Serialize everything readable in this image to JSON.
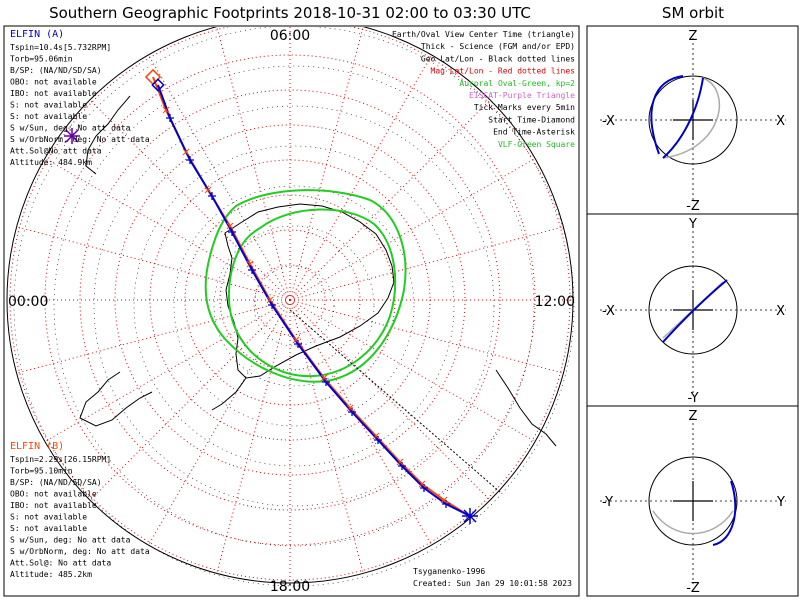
{
  "title": "Southern Geographic Footprints 2018-10-31 02:00 to 03:30 UTC",
  "orbit_title": "SM orbit",
  "main": {
    "time_labels": {
      "top": "06:00",
      "left": "00:00",
      "right": "12:00",
      "bottom": "18:00"
    },
    "legend": [
      {
        "text": "Earth/Oval View Center Time (triangle)",
        "color": "#000000"
      },
      {
        "text": "Thick - Science (FGM and/or EPD)",
        "color": "#000000"
      },
      {
        "text": "Geo Lat/Lon - Black dotted lines",
        "color": "#000000"
      },
      {
        "text": "Mag Lat/Lon - Red dotted lines",
        "color": "#dd0000"
      },
      {
        "text": "Auroral Oval-Green, kp=2",
        "color": "#22bb22"
      },
      {
        "text": "EISCAT-Purple Triangle",
        "color": "#cc66cc"
      },
      {
        "text": "Tick Marks every 5min",
        "color": "#000000"
      },
      {
        "text": "Start Time-Diamond",
        "color": "#000000"
      },
      {
        "text": "End Time-Asterisk",
        "color": "#000000"
      },
      {
        "text": "VLF-Green Square",
        "color": "#22bb22"
      }
    ],
    "elfin_a": {
      "name": "ELFIN (A)",
      "color": "#0000cc",
      "lines": [
        "Tspin=10.4s[5.732RPM]",
        "Torb=95.06min",
        "B/SP: (NA/ND/SD/SA)",
        "OBO: not available",
        "IBO: not available",
        "S: not available",
        "S: not available",
        "S w/Sun, deg: No att data",
        "S w/OrbNorm, deg: No att data",
        "Att.Sol@No att data",
        "Altitude: 484.9km"
      ]
    },
    "elfin_b": {
      "name": "ELFIN (B)",
      "color": "#ff4400",
      "lines": [
        "Tspin=2.29s[26.15RPM]",
        "Torb=95.10min",
        "B/SP: (NA/ND/SD/SA)",
        "OBO: not available",
        "IBO: not available",
        "S: not available",
        "S: not available",
        "S w/Sun, deg: No att data",
        "S w/OrbNorm, deg: No att data",
        "Att.Sol@: No att data",
        "Altitude: 485.2km"
      ]
    },
    "credit": "Tsyganenko-1996",
    "created": "Created: Sun Jan 29 10:01:58 2023"
  },
  "orbit_panels": [
    {
      "top": "Z",
      "bottom": "-Z",
      "left": "-X",
      "right": "X"
    },
    {
      "top": "Y",
      "bottom": "-Y",
      "left": "-X",
      "right": "X"
    },
    {
      "top": "Z",
      "bottom": "-Z",
      "left": "-Y",
      "right": "Y"
    }
  ],
  "colors": {
    "elfin_a": "#0000cc",
    "elfin_b": "#ff4400",
    "mag_grid": "#dd0000",
    "geo_grid": "#000000",
    "aurora": "#22cc22"
  }
}
